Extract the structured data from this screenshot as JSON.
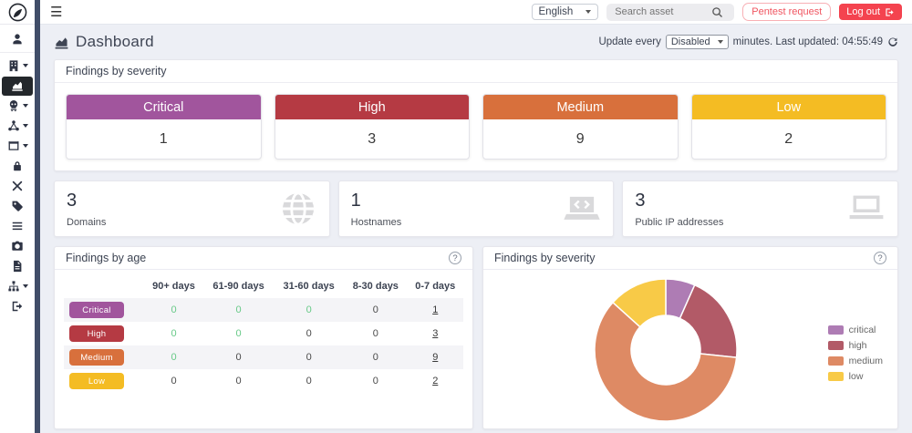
{
  "topbar": {
    "language": "English",
    "search_placeholder": "Search asset",
    "pentest_button": "Pentest request",
    "logout_button": "Log out"
  },
  "header": {
    "title": "Dashboard",
    "update_prefix": "Update every",
    "update_interval": "Disabled",
    "update_suffix": "minutes. Last updated: 04:55:49"
  },
  "severity_panel": {
    "title": "Findings by severity",
    "cards": [
      {
        "label": "Critical",
        "count": "1",
        "color": "#a1559d"
      },
      {
        "label": "High",
        "count": "3",
        "color": "#b53a43"
      },
      {
        "label": "Medium",
        "count": "9",
        "color": "#d8703c"
      },
      {
        "label": "Low",
        "count": "2",
        "color": "#f4bc23"
      }
    ]
  },
  "stat_cards": [
    {
      "value": "3",
      "label": "Domains",
      "icon": "globe-icon"
    },
    {
      "value": "1",
      "label": "Hostnames",
      "icon": "laptop-code-icon"
    },
    {
      "value": "3",
      "label": "Public IP addresses",
      "icon": "laptop-icon"
    }
  ],
  "age_panel": {
    "title": "Findings by age",
    "columns": [
      "90+ days",
      "61-90 days",
      "31-60 days",
      "8-30 days",
      "0-7 days"
    ],
    "rows": [
      {
        "label": "Critical",
        "color": "#a1559d",
        "cells": [
          {
            "text": "0",
            "style": "green"
          },
          {
            "text": "0",
            "style": "green"
          },
          {
            "text": "0",
            "style": "green"
          },
          {
            "text": "0",
            "style": "plain"
          },
          {
            "text": "1",
            "style": "link"
          }
        ]
      },
      {
        "label": "High",
        "color": "#b53a43",
        "cells": [
          {
            "text": "0",
            "style": "green"
          },
          {
            "text": "0",
            "style": "green"
          },
          {
            "text": "0",
            "style": "plain"
          },
          {
            "text": "0",
            "style": "plain"
          },
          {
            "text": "3",
            "style": "link"
          }
        ]
      },
      {
        "label": "Medium",
        "color": "#d8703c",
        "cells": [
          {
            "text": "0",
            "style": "green"
          },
          {
            "text": "0",
            "style": "plain"
          },
          {
            "text": "0",
            "style": "plain"
          },
          {
            "text": "0",
            "style": "plain"
          },
          {
            "text": "9",
            "style": "link"
          }
        ]
      },
      {
        "label": "Low",
        "color": "#f4bc23",
        "cells": [
          {
            "text": "0",
            "style": "plain"
          },
          {
            "text": "0",
            "style": "plain"
          },
          {
            "text": "0",
            "style": "plain"
          },
          {
            "text": "0",
            "style": "plain"
          },
          {
            "text": "2",
            "style": "link"
          }
        ]
      }
    ]
  },
  "chart_panel": {
    "title": "Findings by severity"
  },
  "chart_data": {
    "type": "pie",
    "donut": true,
    "title": "Findings by severity",
    "labels": [
      "critical",
      "high",
      "medium",
      "low"
    ],
    "values": [
      1,
      3,
      9,
      2
    ],
    "colors": [
      "#ae7cb4",
      "#b25a67",
      "#de8a64",
      "#f8ca47"
    ],
    "legend_position": "right",
    "start_angle_deg": 0,
    "direction": "clockwise"
  },
  "sidebar": {
    "items": [
      {
        "icon": "user-icon",
        "caret": false,
        "active": false
      },
      {
        "icon": "building-icon",
        "caret": true,
        "active": false
      },
      {
        "icon": "dashboard-chart-icon",
        "caret": false,
        "active": true
      },
      {
        "icon": "skull-crossbones-icon",
        "caret": true,
        "active": false
      },
      {
        "icon": "share-nodes-icon",
        "caret": true,
        "active": false
      },
      {
        "icon": "window-icon",
        "caret": true,
        "active": false
      },
      {
        "icon": "lock-icon",
        "caret": false,
        "active": false
      },
      {
        "icon": "tools-icon",
        "caret": false,
        "active": false
      },
      {
        "icon": "tag-icon",
        "caret": false,
        "active": false
      },
      {
        "icon": "list-icon",
        "caret": false,
        "active": false
      },
      {
        "icon": "camera-icon",
        "caret": false,
        "active": false
      },
      {
        "icon": "file-icon",
        "caret": false,
        "active": false
      },
      {
        "icon": "sitemap-icon",
        "caret": true,
        "active": false
      },
      {
        "icon": "sign-out-icon",
        "caret": false,
        "active": false
      }
    ]
  }
}
